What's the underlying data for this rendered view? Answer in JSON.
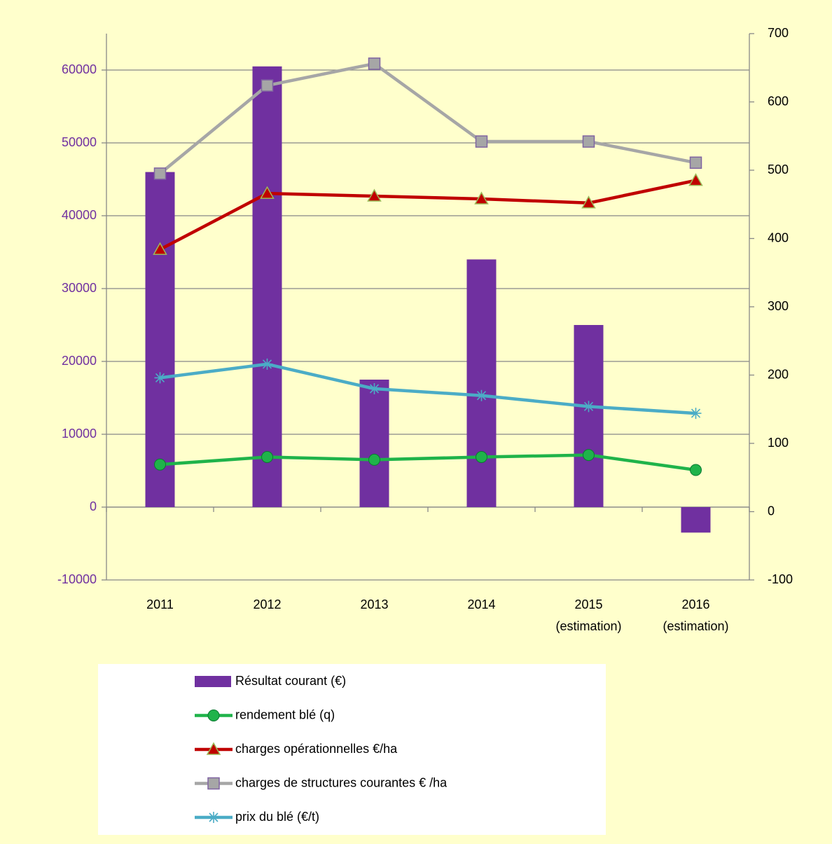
{
  "chart_data": {
    "type": "bar_line",
    "categories": [
      "2011",
      "2012",
      "2013",
      "2014",
      "2015 (estimation)",
      "2016 (estimation)"
    ],
    "series": [
      {
        "name": "Résultat courant (€)",
        "type": "bar",
        "color": "#7030a0",
        "values": [
          46000,
          60500,
          17500,
          34000,
          25000,
          -3500
        ]
      },
      {
        "name": "rendement blé (q)",
        "type": "line",
        "axis": "y2",
        "marker": "circle",
        "color": "#1fb34a",
        "values": [
          69,
          80,
          76,
          80,
          83,
          61
        ]
      },
      {
        "name": "charges opérationnelles €/ha",
        "type": "line",
        "axis": "y2",
        "marker": "triangle",
        "color": "#c00000",
        "values": [
          384,
          466,
          462,
          458,
          452,
          485
        ]
      },
      {
        "name": "charges de structures courantes € /ha",
        "type": "line",
        "axis": "y2",
        "marker": "square",
        "color": "#a6a6a6",
        "values": [
          495,
          624,
          656,
          542,
          542,
          511
        ]
      },
      {
        "name": "prix du blé (€/t)",
        "type": "line",
        "axis": "y2",
        "marker": "star",
        "color": "#4bacc6",
        "values": [
          196,
          216,
          180,
          170,
          154,
          144
        ]
      }
    ],
    "ylim": [
      -10000,
      65000
    ],
    "yticks": [
      -10000,
      0,
      10000,
      20000,
      30000,
      40000,
      50000,
      60000
    ],
    "y2lim": [
      -100,
      700
    ],
    "y2ticks": [
      -100,
      0,
      100,
      200,
      300,
      400,
      500,
      600,
      700
    ],
    "grid": true,
    "legend": "bottom"
  }
}
